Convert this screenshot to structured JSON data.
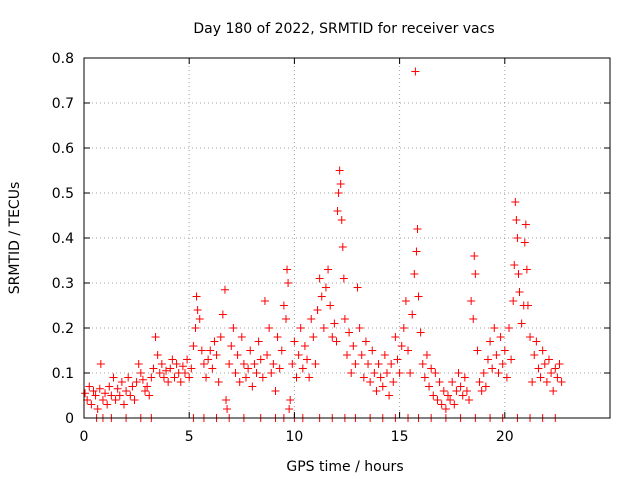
{
  "chart_data": {
    "type": "scatter",
    "title": "Day 180 of 2022, SRMTID for receiver vacs",
    "xlabel": "GPS time / hours",
    "ylabel": "SRMTID / TECUs",
    "xlim": [
      0,
      25
    ],
    "ylim": [
      0,
      0.8
    ],
    "x_ticks": [
      0,
      5,
      10,
      15,
      20
    ],
    "y_ticks": [
      0,
      0.1,
      0.2,
      0.3,
      0.4,
      0.5,
      0.6,
      0.7,
      0.8
    ],
    "x_tick_labels": [
      "0",
      "5",
      "10",
      "15",
      "20"
    ],
    "y_tick_labels": [
      "0",
      "0.1",
      "0.2",
      "0.3",
      "0.4",
      "0.5",
      "0.6",
      "0.7",
      "0.8"
    ],
    "grid": true,
    "marker": "+",
    "color": "#ff0000",
    "series": [
      {
        "name": "SRMTID",
        "points": [
          [
            0.05,
            0.055
          ],
          [
            0.15,
            0.04
          ],
          [
            0.25,
            0.07
          ],
          [
            0.35,
            0.03
          ],
          [
            0.45,
            0.06
          ],
          [
            0.55,
            0.05
          ],
          [
            0.65,
            0.02
          ],
          [
            0.75,
            0.065
          ],
          [
            0.8,
            0.12
          ],
          [
            0.9,
            0.04
          ],
          [
            1.0,
            0.055
          ],
          [
            1.1,
            0.03
          ],
          [
            1.2,
            0.07
          ],
          [
            1.3,
            0.05
          ],
          [
            1.4,
            0.09
          ],
          [
            1.5,
            0.04
          ],
          [
            1.6,
            0.065
          ],
          [
            1.7,
            0.05
          ],
          [
            1.8,
            0.08
          ],
          [
            1.9,
            0.03
          ],
          [
            2.0,
            0.06
          ],
          [
            2.1,
            0.09
          ],
          [
            2.2,
            0.05
          ],
          [
            2.3,
            0.07
          ],
          [
            2.4,
            0.04
          ],
          [
            2.5,
            0.08
          ],
          [
            2.6,
            0.12
          ],
          [
            2.7,
            0.1
          ],
          [
            2.8,
            0.085
          ],
          [
            2.9,
            0.06
          ],
          [
            3.0,
            0.07
          ],
          [
            3.1,
            0.05
          ],
          [
            3.2,
            0.09
          ],
          [
            3.3,
            0.11
          ],
          [
            3.4,
            0.18
          ],
          [
            3.5,
            0.14
          ],
          [
            3.6,
            0.1
          ],
          [
            3.7,
            0.12
          ],
          [
            3.8,
            0.09
          ],
          [
            3.9,
            0.105
          ],
          [
            4.0,
            0.08
          ],
          [
            4.1,
            0.11
          ],
          [
            4.2,
            0.13
          ],
          [
            4.3,
            0.09
          ],
          [
            4.4,
            0.12
          ],
          [
            4.5,
            0.1
          ],
          [
            4.6,
            0.08
          ],
          [
            4.7,
            0.115
          ],
          [
            4.8,
            0.1
          ],
          [
            4.9,
            0.13
          ],
          [
            5.0,
            0.09
          ],
          [
            5.1,
            0.11
          ],
          [
            5.2,
            0.16
          ],
          [
            5.3,
            0.2
          ],
          [
            5.35,
            0.27
          ],
          [
            5.4,
            0.24
          ],
          [
            5.5,
            0.22
          ],
          [
            5.6,
            0.15
          ],
          [
            5.7,
            0.12
          ],
          [
            5.8,
            0.09
          ],
          [
            5.9,
            0.13
          ],
          [
            6.0,
            0.15
          ],
          [
            6.1,
            0.11
          ],
          [
            6.2,
            0.17
          ],
          [
            6.3,
            0.14
          ],
          [
            6.4,
            0.08
          ],
          [
            6.5,
            0.18
          ],
          [
            6.6,
            0.23
          ],
          [
            6.7,
            0.285
          ],
          [
            6.75,
            0.04
          ],
          [
            6.8,
            0.02
          ],
          [
            6.9,
            0.12
          ],
          [
            7.0,
            0.16
          ],
          [
            7.1,
            0.2
          ],
          [
            7.2,
            0.1
          ],
          [
            7.3,
            0.14
          ],
          [
            7.4,
            0.08
          ],
          [
            7.5,
            0.18
          ],
          [
            7.6,
            0.12
          ],
          [
            7.7,
            0.09
          ],
          [
            7.8,
            0.11
          ],
          [
            7.9,
            0.15
          ],
          [
            8.0,
            0.07
          ],
          [
            8.1,
            0.12
          ],
          [
            8.2,
            0.1
          ],
          [
            8.3,
            0.17
          ],
          [
            8.4,
            0.13
          ],
          [
            8.5,
            0.09
          ],
          [
            8.6,
            0.26
          ],
          [
            8.7,
            0.14
          ],
          [
            8.8,
            0.2
          ],
          [
            8.9,
            0.1
          ],
          [
            9.0,
            0.12
          ],
          [
            9.1,
            0.06
          ],
          [
            9.2,
            0.18
          ],
          [
            9.3,
            0.11
          ],
          [
            9.4,
            0.15
          ],
          [
            9.5,
            0.25
          ],
          [
            9.6,
            0.22
          ],
          [
            9.65,
            0.33
          ],
          [
            9.7,
            0.3
          ],
          [
            9.75,
            0.02
          ],
          [
            9.8,
            0.04
          ],
          [
            9.9,
            0.12
          ],
          [
            10.0,
            0.17
          ],
          [
            10.1,
            0.09
          ],
          [
            10.2,
            0.14
          ],
          [
            10.3,
            0.2
          ],
          [
            10.4,
            0.11
          ],
          [
            10.5,
            0.16
          ],
          [
            10.6,
            0.13
          ],
          [
            10.7,
            0.09
          ],
          [
            10.8,
            0.22
          ],
          [
            10.9,
            0.18
          ],
          [
            11.0,
            0.12
          ],
          [
            11.1,
            0.24
          ],
          [
            11.2,
            0.31
          ],
          [
            11.3,
            0.27
          ],
          [
            11.4,
            0.2
          ],
          [
            11.5,
            0.29
          ],
          [
            11.6,
            0.33
          ],
          [
            11.7,
            0.25
          ],
          [
            11.8,
            0.18
          ],
          [
            11.9,
            0.21
          ],
          [
            12.0,
            0.17
          ],
          [
            12.05,
            0.46
          ],
          [
            12.1,
            0.5
          ],
          [
            12.15,
            0.55
          ],
          [
            12.2,
            0.52
          ],
          [
            12.25,
            0.44
          ],
          [
            12.3,
            0.38
          ],
          [
            12.35,
            0.31
          ],
          [
            12.4,
            0.22
          ],
          [
            12.5,
            0.14
          ],
          [
            12.6,
            0.19
          ],
          [
            12.7,
            0.1
          ],
          [
            12.8,
            0.16
          ],
          [
            12.9,
            0.12
          ],
          [
            13.0,
            0.29
          ],
          [
            13.1,
            0.2
          ],
          [
            13.2,
            0.14
          ],
          [
            13.3,
            0.09
          ],
          [
            13.4,
            0.17
          ],
          [
            13.5,
            0.12
          ],
          [
            13.6,
            0.08
          ],
          [
            13.7,
            0.15
          ],
          [
            13.8,
            0.1
          ],
          [
            13.9,
            0.06
          ],
          [
            14.0,
            0.12
          ],
          [
            14.1,
            0.09
          ],
          [
            14.2,
            0.07
          ],
          [
            14.3,
            0.14
          ],
          [
            14.4,
            0.1
          ],
          [
            14.5,
            0.05
          ],
          [
            14.6,
            0.12
          ],
          [
            14.7,
            0.08
          ],
          [
            14.8,
            0.18
          ],
          [
            14.9,
            0.13
          ],
          [
            15.0,
            0.1
          ],
          [
            15.1,
            0.16
          ],
          [
            15.2,
            0.2
          ],
          [
            15.3,
            0.26
          ],
          [
            15.4,
            0.15
          ],
          [
            15.5,
            0.1
          ],
          [
            15.6,
            0.23
          ],
          [
            15.7,
            0.32
          ],
          [
            15.75,
            0.77
          ],
          [
            15.8,
            0.37
          ],
          [
            15.85,
            0.42
          ],
          [
            15.9,
            0.27
          ],
          [
            16.0,
            0.19
          ],
          [
            16.1,
            0.12
          ],
          [
            16.2,
            0.09
          ],
          [
            16.3,
            0.14
          ],
          [
            16.4,
            0.07
          ],
          [
            16.5,
            0.11
          ],
          [
            16.6,
            0.05
          ],
          [
            16.7,
            0.1
          ],
          [
            16.8,
            0.04
          ],
          [
            16.9,
            0.08
          ],
          [
            17.0,
            0.03
          ],
          [
            17.1,
            0.06
          ],
          [
            17.2,
            0.02
          ],
          [
            17.3,
            0.05
          ],
          [
            17.4,
            0.04
          ],
          [
            17.5,
            0.08
          ],
          [
            17.6,
            0.03
          ],
          [
            17.7,
            0.06
          ],
          [
            17.8,
            0.1
          ],
          [
            17.9,
            0.07
          ],
          [
            18.0,
            0.05
          ],
          [
            18.1,
            0.09
          ],
          [
            18.2,
            0.06
          ],
          [
            18.3,
            0.04
          ],
          [
            18.4,
            0.26
          ],
          [
            18.5,
            0.22
          ],
          [
            18.55,
            0.36
          ],
          [
            18.6,
            0.32
          ],
          [
            18.7,
            0.15
          ],
          [
            18.8,
            0.08
          ],
          [
            18.9,
            0.06
          ],
          [
            19.0,
            0.1
          ],
          [
            19.1,
            0.07
          ],
          [
            19.2,
            0.13
          ],
          [
            19.3,
            0.17
          ],
          [
            19.4,
            0.11
          ],
          [
            19.5,
            0.2
          ],
          [
            19.6,
            0.14
          ],
          [
            19.7,
            0.1
          ],
          [
            19.8,
            0.18
          ],
          [
            19.9,
            0.12
          ],
          [
            20.0,
            0.15
          ],
          [
            20.1,
            0.09
          ],
          [
            20.2,
            0.2
          ],
          [
            20.3,
            0.13
          ],
          [
            20.4,
            0.26
          ],
          [
            20.45,
            0.34
          ],
          [
            20.5,
            0.48
          ],
          [
            20.55,
            0.44
          ],
          [
            20.6,
            0.4
          ],
          [
            20.65,
            0.32
          ],
          [
            20.7,
            0.28
          ],
          [
            20.8,
            0.21
          ],
          [
            20.9,
            0.25
          ],
          [
            20.95,
            0.39
          ],
          [
            21.0,
            0.43
          ],
          [
            21.05,
            0.33
          ],
          [
            21.1,
            0.25
          ],
          [
            21.2,
            0.18
          ],
          [
            21.3,
            0.08
          ],
          [
            21.4,
            0.14
          ],
          [
            21.5,
            0.17
          ],
          [
            21.6,
            0.11
          ],
          [
            21.7,
            0.09
          ],
          [
            21.8,
            0.15
          ],
          [
            21.9,
            0.12
          ],
          [
            22.0,
            0.08
          ],
          [
            22.1,
            0.13
          ],
          [
            22.2,
            0.1
          ],
          [
            22.3,
            0.06
          ],
          [
            22.4,
            0.11
          ],
          [
            22.5,
            0.09
          ],
          [
            22.6,
            0.12
          ],
          [
            22.7,
            0.08
          ],
          [
            0.6,
            0.0
          ],
          [
            0.9,
            0.0
          ],
          [
            1.3,
            0.0
          ],
          [
            2.0,
            0.0
          ],
          [
            2.7,
            0.0
          ],
          [
            3.2,
            0.0
          ],
          [
            5.2,
            0.0
          ],
          [
            5.7,
            0.0
          ],
          [
            6.3,
            0.0
          ],
          [
            6.9,
            0.0
          ],
          [
            7.6,
            0.0
          ],
          [
            8.4,
            0.0
          ],
          [
            9.1,
            0.0
          ],
          [
            9.5,
            0.0
          ],
          [
            10.0,
            0.0
          ],
          [
            10.4,
            0.0
          ],
          [
            11.2,
            0.0
          ],
          [
            11.8,
            0.0
          ],
          [
            12.4,
            0.0
          ],
          [
            12.9,
            0.0
          ],
          [
            13.6,
            0.0
          ],
          [
            14.2,
            0.0
          ],
          [
            14.8,
            0.0
          ],
          [
            15.4,
            0.0
          ],
          [
            15.9,
            0.0
          ],
          [
            16.5,
            0.0
          ],
          [
            17.2,
            0.0
          ],
          [
            17.9,
            0.0
          ],
          [
            18.6,
            0.0
          ],
          [
            19.3,
            0.0
          ],
          [
            19.9,
            0.0
          ],
          [
            20.6,
            0.0
          ],
          [
            21.2,
            0.0
          ],
          [
            21.8,
            0.0
          ],
          [
            22.4,
            0.0
          ]
        ]
      }
    ]
  }
}
